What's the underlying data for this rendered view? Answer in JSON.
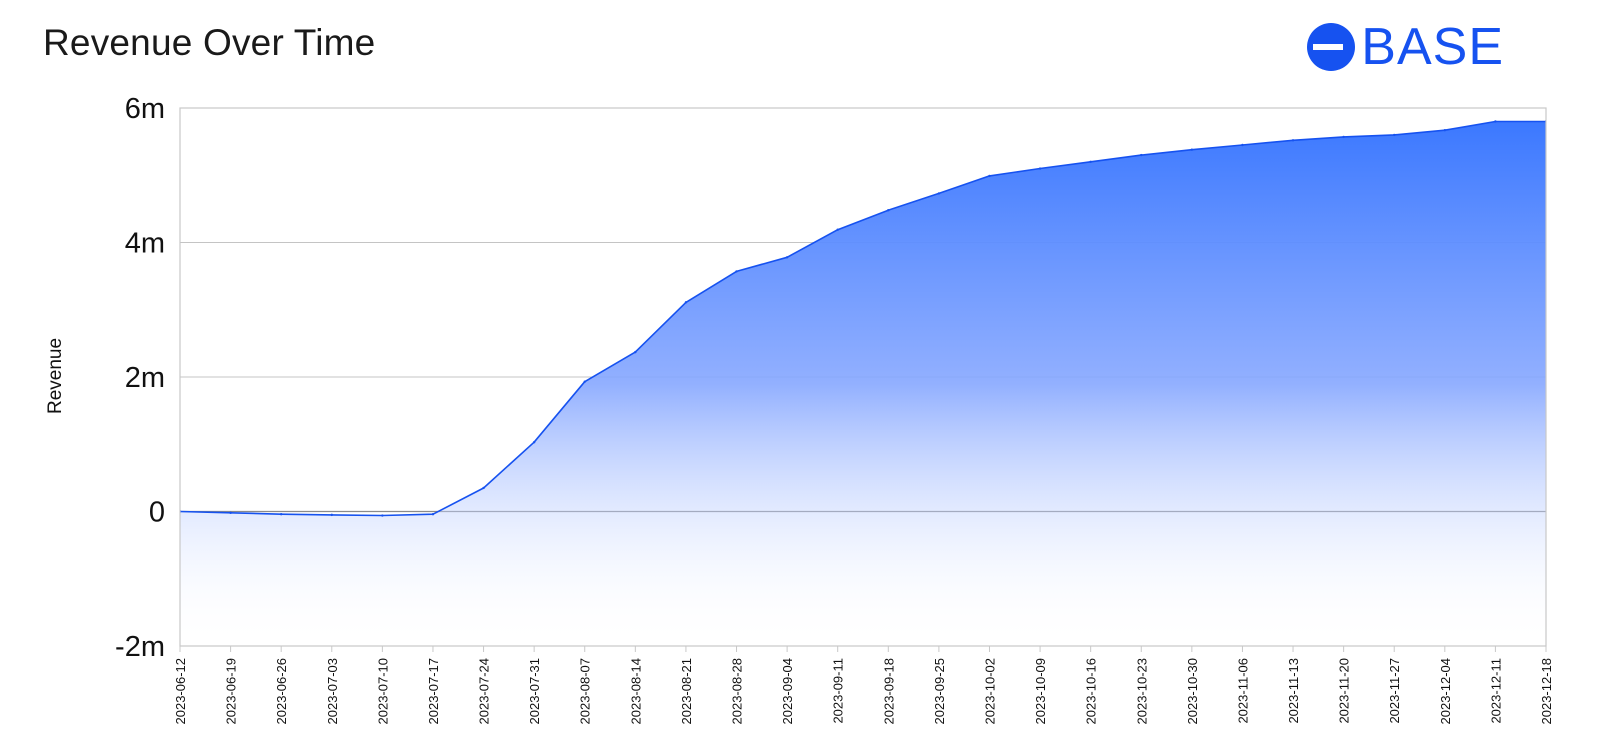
{
  "header": {
    "title": "Revenue Over Time",
    "brand_name": "BASE",
    "brand_icon": "base-logo-icon",
    "brand_color": "#1652f0"
  },
  "chart_data": {
    "type": "area",
    "title": "Revenue Over Time",
    "xlabel": "",
    "ylabel": "Revenue",
    "ylim": [
      -2000000,
      6000000
    ],
    "yticks": [
      -2000000,
      0,
      2000000,
      4000000,
      6000000
    ],
    "ytick_labels": [
      "-2m",
      "0",
      "2m",
      "4m",
      "6m"
    ],
    "grid": true,
    "legend": "none",
    "colors": {
      "line": "#1652f0",
      "fill_top": "#3b78ff",
      "fill_bottom": "#ffffff"
    },
    "x": [
      "2023-06-12",
      "2023-06-19",
      "2023-06-26",
      "2023-07-03",
      "2023-07-10",
      "2023-07-17",
      "2023-07-24",
      "2023-07-31",
      "2023-08-07",
      "2023-08-14",
      "2023-08-21",
      "2023-08-28",
      "2023-09-04",
      "2023-09-11",
      "2023-09-18",
      "2023-09-25",
      "2023-10-02",
      "2023-10-09",
      "2023-10-16",
      "2023-10-23",
      "2023-10-30",
      "2023-11-06",
      "2023-11-13",
      "2023-11-20",
      "2023-11-27",
      "2023-12-04",
      "2023-12-11",
      "2023-12-18"
    ],
    "values": [
      0,
      -20000,
      -40000,
      -50000,
      -60000,
      -40000,
      350000,
      1030000,
      1930000,
      2370000,
      3110000,
      3570000,
      3780000,
      4190000,
      4480000,
      4730000,
      4990000,
      5100000,
      5200000,
      5300000,
      5380000,
      5450000,
      5520000,
      5570000,
      5600000,
      5670000,
      5800000,
      5800000
    ]
  }
}
